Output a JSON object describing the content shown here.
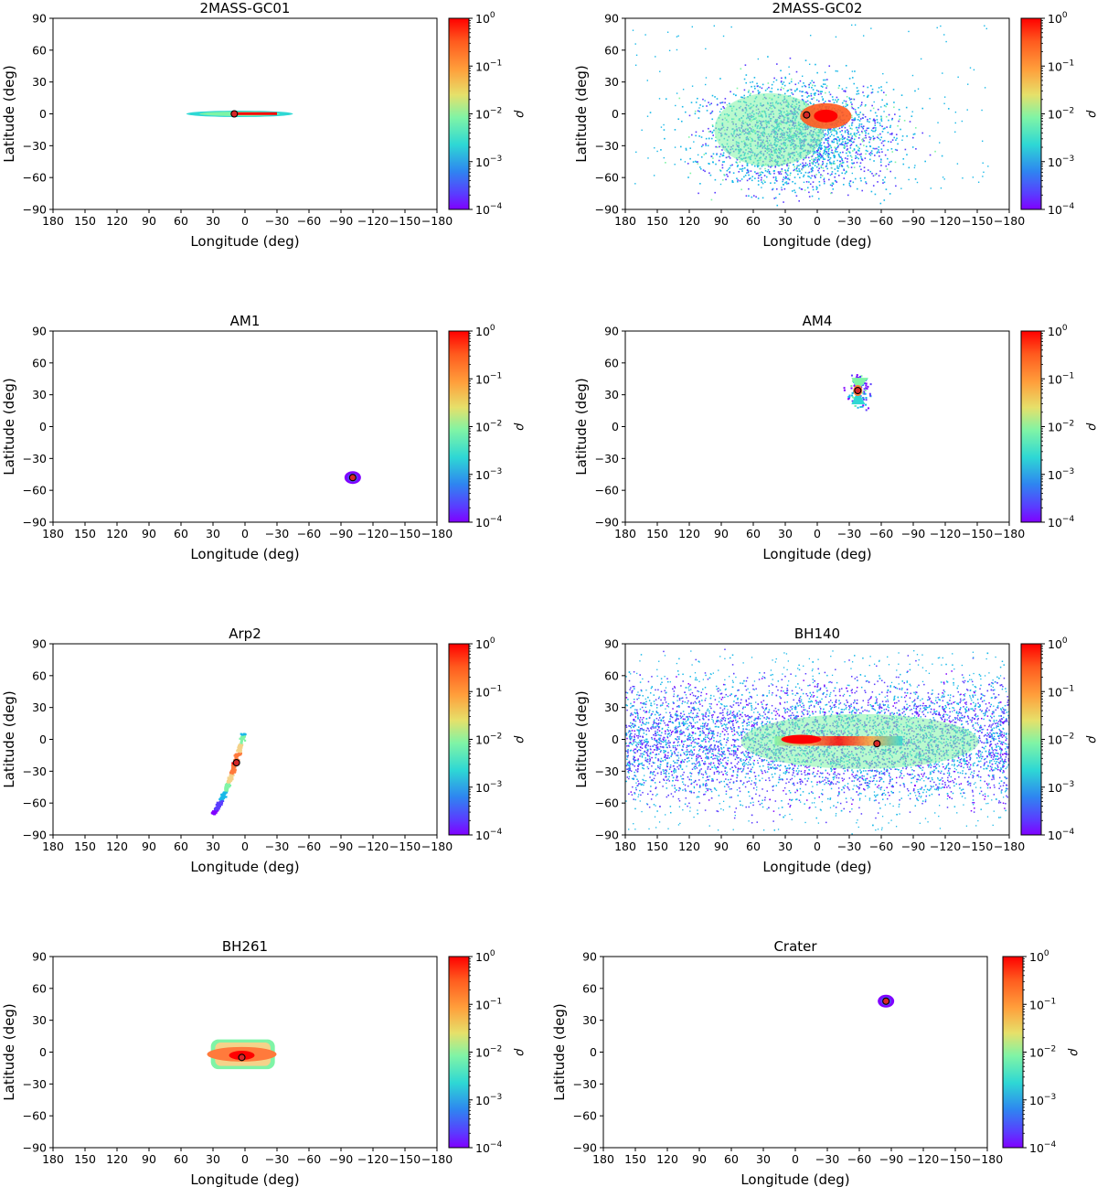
{
  "figure": {
    "xlabel": "Longitude (deg)",
    "ylabel": "Latitude (deg)",
    "cbar_label": "ρ",
    "xticks": [
      180,
      150,
      120,
      90,
      60,
      30,
      0,
      -30,
      -60,
      -90,
      -120,
      -150,
      -180
    ],
    "yticks": [
      90,
      60,
      30,
      0,
      -30,
      -60,
      -90
    ],
    "cbar_ticks": [
      {
        "base": "10",
        "exp": "0"
      },
      {
        "base": "10",
        "exp": "−1"
      },
      {
        "base": "10",
        "exp": "−2"
      },
      {
        "base": "10",
        "exp": "−3"
      },
      {
        "base": "10",
        "exp": "−4"
      }
    ],
    "colormap": [
      "#ff0000",
      "#ff7a3c",
      "#f4d28a",
      "#7ff4a6",
      "#17b8e8",
      "#5a3cff",
      "#8000ff"
    ]
  },
  "chart_data": [
    {
      "type": "scatter",
      "title": "2MASS-GC01",
      "xlabel": "Longitude (deg)",
      "ylabel": "Latitude (deg)",
      "xlim": [
        180,
        -180
      ],
      "ylim": [
        -90,
        90
      ],
      "cbar_range": [
        0.0001,
        1
      ],
      "cbar_scale": "log",
      "cluster_position": [
        10,
        0
      ],
      "extent": {
        "lon": [
          55,
          -45
        ],
        "lat": [
          -3,
          3
        ]
      }
    },
    {
      "type": "scatter",
      "title": "2MASS-GC02",
      "xlabel": "Longitude (deg)",
      "ylabel": "Latitude (deg)",
      "xlim": [
        180,
        -180
      ],
      "ylim": [
        -90,
        90
      ],
      "cbar_range": [
        0.0001,
        1
      ],
      "cbar_scale": "log",
      "cluster_position": [
        10,
        -1
      ],
      "extent": {
        "lon": [
          175,
          -160
        ],
        "lat": [
          -70,
          85
        ]
      }
    },
    {
      "type": "scatter",
      "title": "AM1",
      "xlabel": "Longitude (deg)",
      "ylabel": "Latitude (deg)",
      "xlim": [
        180,
        -180
      ],
      "ylim": [
        -90,
        90
      ],
      "cbar_range": [
        0.0001,
        1
      ],
      "cbar_scale": "log",
      "cluster_position": [
        -101,
        -48
      ],
      "extent": {
        "lon": [
          -95,
          -107
        ],
        "lat": [
          -44,
          -53
        ]
      }
    },
    {
      "type": "scatter",
      "title": "AM4",
      "xlabel": "Longitude (deg)",
      "ylabel": "Latitude (deg)",
      "xlim": [
        180,
        -180
      ],
      "ylim": [
        -90,
        90
      ],
      "cbar_range": [
        0.0001,
        1
      ],
      "cbar_scale": "log",
      "cluster_position": [
        -38,
        34
      ],
      "extent": {
        "lon": [
          -30,
          -52
        ],
        "lat": [
          20,
          46
        ]
      }
    },
    {
      "type": "scatter",
      "title": "Arp2",
      "xlabel": "Longitude (deg)",
      "ylabel": "Latitude (deg)",
      "xlim": [
        180,
        -180
      ],
      "ylim": [
        -90,
        90
      ],
      "cbar_range": [
        0.0001,
        1
      ],
      "cbar_scale": "log",
      "cluster_position": [
        8,
        -22
      ],
      "extent": {
        "lon": [
          32,
          2
        ],
        "lat": [
          -70,
          6
        ]
      }
    },
    {
      "type": "scatter",
      "title": "BH140",
      "xlabel": "Longitude (deg)",
      "ylabel": "Latitude (deg)",
      "xlim": [
        180,
        -180
      ],
      "ylim": [
        -90,
        90
      ],
      "cbar_range": [
        0.0001,
        1
      ],
      "cbar_scale": "log",
      "cluster_position": [
        -56,
        -4
      ],
      "extent": {
        "lon": [
          180,
          -180
        ],
        "lat": [
          -85,
          85
        ]
      }
    },
    {
      "type": "scatter",
      "title": "BH261",
      "xlabel": "Longitude (deg)",
      "ylabel": "Latitude (deg)",
      "xlim": [
        180,
        -180
      ],
      "ylim": [
        -90,
        90
      ],
      "cbar_range": [
        0.0001,
        1
      ],
      "cbar_scale": "log",
      "cluster_position": [
        3,
        -5
      ],
      "extent": {
        "lon": [
          32,
          -28
        ],
        "lat": [
          -16,
          12
        ]
      }
    },
    {
      "type": "scatter",
      "title": "Crater",
      "xlabel": "Longitude (deg)",
      "ylabel": "Latitude (deg)",
      "xlim": [
        180,
        -180
      ],
      "ylim": [
        -90,
        90
      ],
      "cbar_range": [
        0.0001,
        1
      ],
      "cbar_scale": "log",
      "cluster_position": [
        -85,
        48
      ],
      "extent": {
        "lon": [
          -78,
          -93
        ],
        "lat": [
          43,
          53
        ]
      }
    }
  ]
}
